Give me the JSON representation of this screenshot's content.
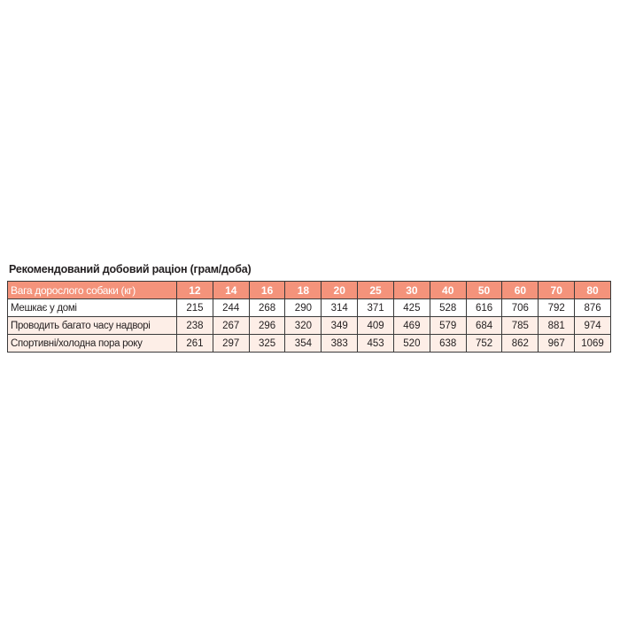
{
  "title": "Рекомендований добовий раціон (грам/доба)",
  "table": {
    "header": {
      "label": "Вага дорослого собаки (кг)",
      "values": [
        12,
        14,
        16,
        18,
        20,
        25,
        30,
        40,
        50,
        60,
        70,
        80
      ]
    },
    "rows": [
      {
        "label": "Мешкає у домі",
        "values": [
          215,
          244,
          268,
          290,
          314,
          371,
          425,
          528,
          616,
          706,
          792,
          876
        ]
      },
      {
        "label": "Проводить багато часу надворі",
        "values": [
          238,
          267,
          296,
          320,
          349,
          409,
          469,
          579,
          684,
          785,
          881,
          974
        ]
      },
      {
        "label": "Спортивні/холодна пора року",
        "values": [
          261,
          297,
          325,
          354,
          383,
          453,
          520,
          638,
          752,
          862,
          967,
          1069
        ]
      }
    ]
  }
}
